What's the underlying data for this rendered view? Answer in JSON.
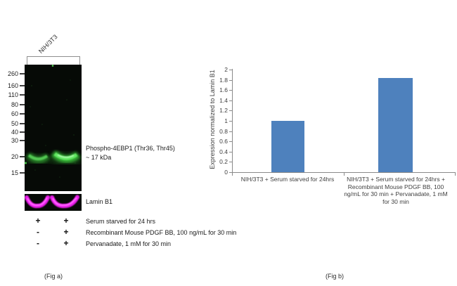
{
  "fig_a": {
    "lane_label": "NIH/3T3",
    "mw_markers": [
      "260",
      "160",
      "110",
      "80",
      "60",
      "50",
      "40",
      "30",
      "20",
      "15"
    ],
    "band_label_line1": "Phospho-4EBP1 (Thr36, Thr45)",
    "band_label_line2": "~ 17 kDa",
    "loading_control_label": "Lamin B1",
    "treatments": [
      {
        "lane1_sign": "+",
        "lane2_sign": "+",
        "label": "Serum starved for 24 hrs"
      },
      {
        "lane1_sign": "-",
        "lane2_sign": "+",
        "label": "Recombinant Mouse PDGF BB, 100 ng/mL for 30 min"
      },
      {
        "lane1_sign": "-",
        "lane2_sign": "+",
        "label": "Pervanadate, 1 mM for 30 min"
      }
    ],
    "caption": "(Fig a)"
  },
  "fig_b": {
    "caption": "(Fig b)"
  },
  "chart_data": {
    "type": "bar",
    "title": "",
    "xlabel": "",
    "ylabel": "Expression normalized to Lamin B1",
    "categories": [
      "NIH/3T3 + Serum starved for 24hrs",
      "NIH/3T3 + Serum starved for 24hrs + Recombinant Mouse PDGF BB, 100 ng/mL for 30 min + Pervanadate, 1 mM for 30 min"
    ],
    "values": [
      1.0,
      1.84
    ],
    "ylim": [
      0,
      2
    ],
    "ytick_step": 0.2,
    "bar_color": "#4E81BD",
    "grid": false,
    "legend": false
  },
  "colors": {
    "bar_fill": "#4E81BD",
    "axis": "#8A8A8A",
    "chart_text": "#404040",
    "band_green": "#55E055",
    "band_magenta": "#F320F3"
  }
}
